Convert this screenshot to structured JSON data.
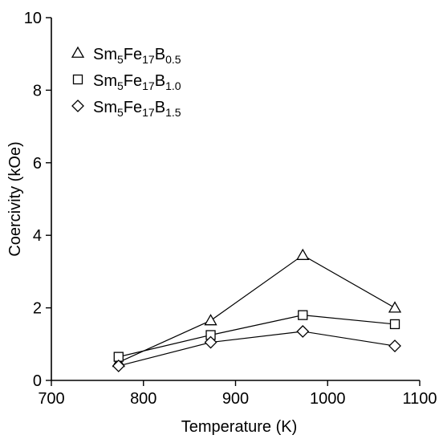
{
  "chart_data": {
    "type": "line",
    "title": "",
    "xlabel": "Temperature (K)",
    "ylabel": "Coercivity (kOe)",
    "xlim": [
      700,
      1100
    ],
    "ylim": [
      0,
      10
    ],
    "x_ticks": [
      700,
      800,
      900,
      1000,
      1100
    ],
    "y_ticks": [
      0,
      2,
      4,
      6,
      8,
      10
    ],
    "x_tick_labels": [
      "700",
      "800",
      "900",
      "1000",
      "1100"
    ],
    "y_tick_labels": [
      "0",
      "2",
      "4",
      "6",
      "8",
      "10"
    ],
    "x": [
      773,
      873,
      973,
      1073
    ],
    "grid": false,
    "legend_position": "top-left",
    "series": [
      {
        "name": "Sm5Fe17B0.5",
        "name_parts": {
          "base": "Sm",
          "s1": "5",
          "mid": "Fe",
          "s2": "17",
          "end": "B",
          "s3": "0.5"
        },
        "marker": "triangle",
        "values": [
          0.5,
          1.65,
          3.45,
          2.0
        ]
      },
      {
        "name": "Sm5Fe17B1.0",
        "name_parts": {
          "base": "Sm",
          "s1": "5",
          "mid": "Fe",
          "s2": "17",
          "end": "B",
          "s3": "1.0"
        },
        "marker": "square",
        "values": [
          0.65,
          1.25,
          1.8,
          1.55
        ]
      },
      {
        "name": "Sm5Fe17B1.5",
        "name_parts": {
          "base": "Sm",
          "s1": "5",
          "mid": "Fe",
          "s2": "17",
          "end": "B",
          "s3": "1.5"
        },
        "marker": "diamond",
        "values": [
          0.4,
          1.05,
          1.35,
          0.95
        ]
      }
    ],
    "colors": {
      "line": "#000000",
      "marker_fill": "#ffffff"
    }
  }
}
